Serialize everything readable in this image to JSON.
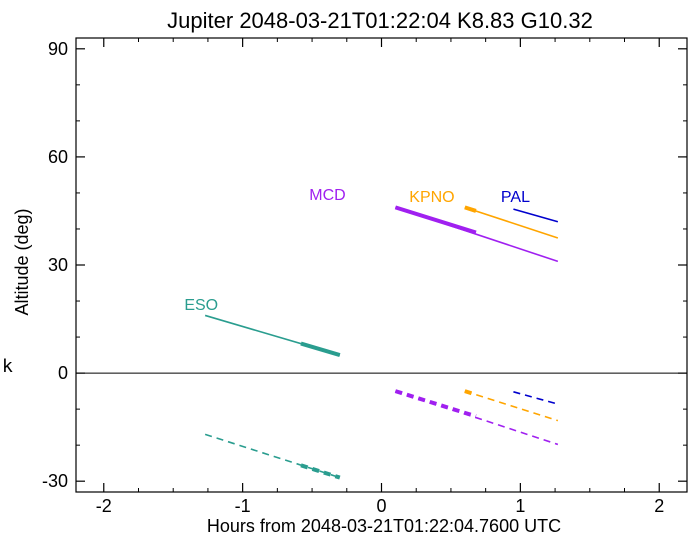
{
  "chart_data": {
    "type": "line",
    "title": "Jupiter 2048-03-21T01:22:04  K8.83  G10.32",
    "xlabel": "Hours from 2048-03-21T01:22:04.7600 UTC",
    "ylabel": "Altitude (deg)",
    "side_mark": "k",
    "xlim": [
      -2.2,
      2.2
    ],
    "ylim": [
      -33,
      93
    ],
    "xticks": [
      -2,
      -1,
      0,
      1,
      2
    ],
    "yticks": [
      -30,
      0,
      30,
      60,
      90
    ],
    "zero_line": 0,
    "series": [
      {
        "name": "ESO",
        "color": "#2a9d8f",
        "altitude": {
          "x": [
            -1.27,
            -0.3
          ],
          "y": [
            16.0,
            5.0
          ]
        },
        "altitude_thick": {
          "x": [
            -0.58,
            -0.3
          ],
          "y": [
            8.2,
            5.0
          ]
        },
        "dashed": {
          "x": [
            -1.27,
            -0.3
          ],
          "y": [
            -17.0,
            -29.0
          ]
        },
        "dashed_thick": {
          "x": [
            -0.58,
            -0.3
          ],
          "y": [
            -25.6,
            -29.0
          ]
        },
        "label_at": {
          "x": -1.42,
          "y": 17.5
        }
      },
      {
        "name": "MCD",
        "color": "#a020f0",
        "altitude": {
          "x": [
            0.1,
            1.27
          ],
          "y": [
            46.0,
            31.0
          ]
        },
        "altitude_thick": {
          "x": [
            0.1,
            0.68
          ],
          "y": [
            46.0,
            39.0
          ]
        },
        "dashed": {
          "x": [
            0.1,
            1.27
          ],
          "y": [
            -5.0,
            -19.8
          ]
        },
        "dashed_thick": {
          "x": [
            0.1,
            0.68
          ],
          "y": [
            -5.0,
            -12.0
          ]
        },
        "label_at": {
          "x": -0.52,
          "y": 48.0
        }
      },
      {
        "name": "KPNO",
        "color": "#ffa500",
        "altitude": {
          "x": [
            0.6,
            1.27
          ],
          "y": [
            46.0,
            37.5
          ]
        },
        "altitude_thick": {
          "x": [
            0.6,
            0.68
          ],
          "y": [
            46.0,
            45.0
          ]
        },
        "dashed": {
          "x": [
            0.6,
            1.27
          ],
          "y": [
            -5.0,
            -13.2
          ]
        },
        "dashed_thick": {
          "x": [
            0.6,
            0.68
          ],
          "y": [
            -5.0,
            -6.0
          ]
        },
        "label_at": {
          "x": 0.2,
          "y": 47.5
        }
      },
      {
        "name": "PAL",
        "color": "#0000cd",
        "altitude": {
          "x": [
            0.95,
            1.27
          ],
          "y": [
            45.5,
            42.0
          ]
        },
        "altitude_thick": null,
        "dashed": {
          "x": [
            0.95,
            1.27
          ],
          "y": [
            -5.2,
            -8.6
          ]
        },
        "dashed_thick": null,
        "label_at": {
          "x": 0.86,
          "y": 47.5
        }
      }
    ]
  }
}
